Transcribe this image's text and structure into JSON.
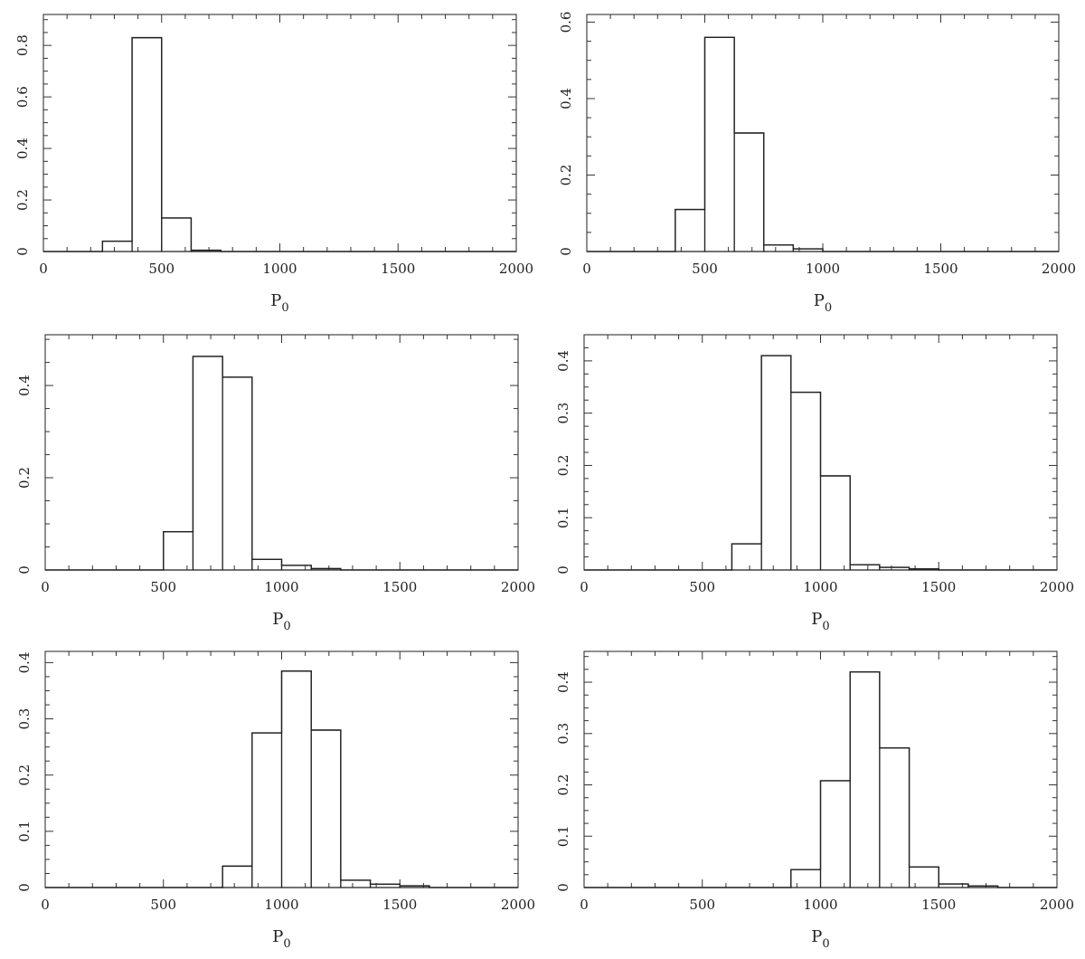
{
  "chart_data": [
    {
      "type": "bar",
      "xlabel": "P",
      "xlabel_sub": "0",
      "xlim": [
        0,
        2000
      ],
      "ylim": [
        0,
        0.92
      ],
      "xticks": [
        "0",
        "500",
        "1000",
        "1500",
        "2000"
      ],
      "yticks": [
        "0",
        "0.2",
        "0.4",
        "0.6",
        "0.8"
      ],
      "bin_edges": [
        0,
        125,
        250,
        375,
        500,
        625,
        750,
        875,
        1000,
        1125,
        1250,
        1375,
        1500,
        1625,
        1750,
        1875,
        2000
      ],
      "values": [
        0,
        0,
        0.04,
        0.83,
        0.13,
        0.005,
        0,
        0,
        0,
        0,
        0,
        0,
        0,
        0,
        0,
        0
      ],
      "grid": false
    },
    {
      "type": "bar",
      "xlabel": "P",
      "xlabel_sub": "0",
      "xlim": [
        0,
        2000
      ],
      "ylim": [
        0,
        0.62
      ],
      "xticks": [
        "0",
        "500",
        "1000",
        "1500",
        "2000"
      ],
      "yticks": [
        "0",
        "0.2",
        "0.4",
        "0.6"
      ],
      "bin_edges": [
        0,
        125,
        250,
        375,
        500,
        625,
        750,
        875,
        1000,
        1125,
        1250,
        1375,
        1500,
        1625,
        1750,
        1875,
        2000
      ],
      "values": [
        0,
        0,
        0,
        0.11,
        0.56,
        0.31,
        0.017,
        0.007,
        0,
        0,
        0,
        0,
        0,
        0,
        0,
        0
      ],
      "grid": false
    },
    {
      "type": "bar",
      "xlabel": "P",
      "xlabel_sub": "0",
      "xlim": [
        0,
        2000
      ],
      "ylim": [
        0,
        0.51
      ],
      "xticks": [
        "0",
        "500",
        "1000",
        "1500",
        "2000"
      ],
      "yticks": [
        "0",
        "0.2",
        "0.4"
      ],
      "bin_edges": [
        0,
        125,
        250,
        375,
        500,
        625,
        750,
        875,
        1000,
        1125,
        1250,
        1375,
        1500,
        1625,
        1750,
        1875,
        2000
      ],
      "values": [
        0,
        0,
        0,
        0,
        0.083,
        0.463,
        0.418,
        0.023,
        0.01,
        0.003,
        0,
        0,
        0,
        0,
        0,
        0
      ],
      "grid": false
    },
    {
      "type": "bar",
      "xlabel": "P",
      "xlabel_sub": "0",
      "xlim": [
        0,
        2000
      ],
      "ylim": [
        0,
        0.45
      ],
      "xticks": [
        "0",
        "500",
        "1000",
        "1500",
        "2000"
      ],
      "yticks": [
        "0",
        "0.1",
        "0.2",
        "0.3",
        "0.4"
      ],
      "bin_edges": [
        0,
        125,
        250,
        375,
        500,
        625,
        750,
        875,
        1000,
        1125,
        1250,
        1375,
        1500,
        1625,
        1750,
        1875,
        2000
      ],
      "values": [
        0,
        0,
        0,
        0,
        0,
        0.05,
        0.41,
        0.34,
        0.18,
        0.01,
        0.005,
        0.002,
        0,
        0,
        0,
        0
      ],
      "grid": false
    },
    {
      "type": "bar",
      "xlabel": "P",
      "xlabel_sub": "0",
      "xlim": [
        0,
        2000
      ],
      "ylim": [
        0,
        0.42
      ],
      "xticks": [
        "0",
        "500",
        "1000",
        "1500",
        "2000"
      ],
      "yticks": [
        "0",
        "0.1",
        "0.2",
        "0.3",
        "0.4"
      ],
      "bin_edges": [
        0,
        125,
        250,
        375,
        500,
        625,
        750,
        875,
        1000,
        1125,
        1250,
        1375,
        1500,
        1625,
        1750,
        1875,
        2000
      ],
      "values": [
        0,
        0,
        0,
        0,
        0,
        0,
        0.038,
        0.275,
        0.385,
        0.28,
        0.013,
        0.006,
        0.003,
        0,
        0,
        0
      ],
      "grid": false
    },
    {
      "type": "bar",
      "xlabel": "P",
      "xlabel_sub": "0",
      "xlim": [
        0,
        2000
      ],
      "ylim": [
        0,
        0.46
      ],
      "xticks": [
        "0",
        "500",
        "1000",
        "1500",
        "2000"
      ],
      "yticks": [
        "0",
        "0.1",
        "0.2",
        "0.3",
        "0.4"
      ],
      "bin_edges": [
        0,
        125,
        250,
        375,
        500,
        625,
        750,
        875,
        1000,
        1125,
        1250,
        1375,
        1500,
        1625,
        1750,
        1875,
        2000
      ],
      "values": [
        0,
        0,
        0,
        0,
        0,
        0,
        0,
        0.035,
        0.208,
        0.42,
        0.272,
        0.04,
        0.007,
        0.003,
        0,
        0
      ],
      "grid": false
    }
  ]
}
